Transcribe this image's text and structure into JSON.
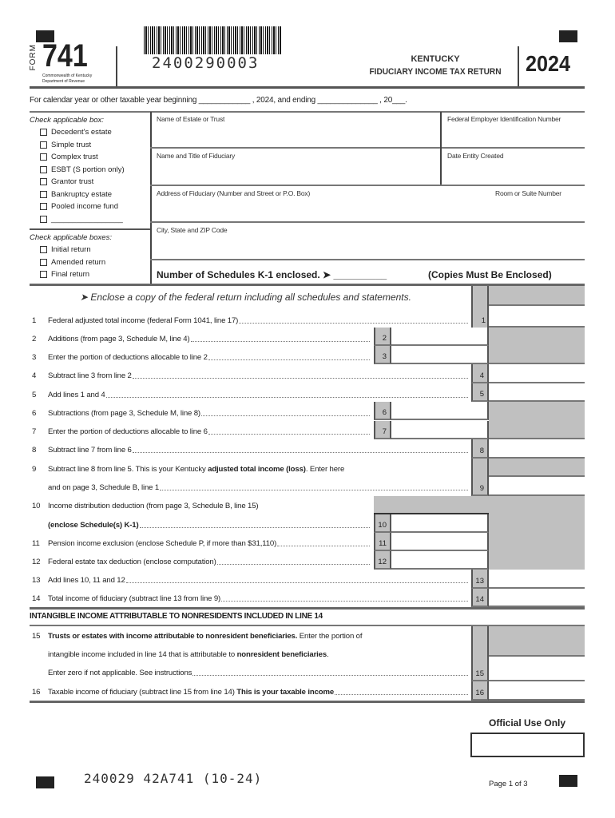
{
  "header": {
    "form_label": "FORM",
    "form_number": "741",
    "agency_line1": "Commonwealth of Kentucky",
    "agency_line2": "Department of Revenue",
    "barcode_number": "2400290003",
    "title_line1": "KENTUCKY",
    "title_line2": "FIDUCIARY INCOME TAX RETURN",
    "year": "2024"
  },
  "tax_year_line": "For calendar year or other taxable year beginning ____________ , 2024, and ending ______________ , 20___.",
  "entity_type": {
    "label": "Check applicable box:",
    "options": [
      "Decedent's estate",
      "Simple trust",
      "Complex trust",
      "ESBT (S portion only)",
      "Grantor trust",
      "Bankruptcy estate",
      "Pooled income fund",
      "_________________"
    ]
  },
  "return_type": {
    "label": "Check applicable boxes:",
    "options": [
      "Initial return",
      "Amended return",
      "Final return"
    ]
  },
  "fields": {
    "name": "Name of Estate or Trust",
    "fein": "Federal Employer Identification Number",
    "fiduciary": "Name and Title of Fiduciary",
    "date_created": "Date Entity Created",
    "address": "Address of Fiduciary (Number and Street or P.O. Box)",
    "suite": "Room or Suite Number",
    "city": "City, State and ZIP Code"
  },
  "k1": {
    "label": "Number of Schedules K-1 enclosed. ➤ __________",
    "note": "(Copies Must Be Enclosed)"
  },
  "enclose_note": "➤  Enclose a copy of the federal return including all schedules and statements.",
  "lines": {
    "l1": {
      "num": "1",
      "text": "Federal adjusted total income (federal Form 1041, line 17)"
    },
    "l2": {
      "num": "2",
      "text": "Additions (from page 3, Schedule M, line 4)"
    },
    "l3": {
      "num": "3",
      "text": "Enter the portion of deductions allocable to line 2"
    },
    "l4": {
      "num": "4",
      "text": "Subtract line 3 from line 2"
    },
    "l5": {
      "num": "5",
      "text": "Add lines 1 and 4"
    },
    "l6": {
      "num": "6",
      "text": "Subtractions (from page 3, Schedule M, line 8)"
    },
    "l7": {
      "num": "7",
      "text": "Enter the portion of deductions allocable to line 6"
    },
    "l8": {
      "num": "8",
      "text": "Subtract line 7 from line 6"
    },
    "l9": {
      "num": "9",
      "text_a": "Subtract line 8 from line 5. This is your Kentucky ",
      "bold_a": "adjusted total income (loss)",
      "text_b": ". Enter here",
      "text_c": "and on page 3, Schedule B, line 1"
    },
    "l10": {
      "num": "10",
      "text_a": "Income distribution deduction (from page 3, Schedule B, line 15)",
      "bold_b": "(enclose Schedule(s) K-1)"
    },
    "l11": {
      "num": "11",
      "text": "Pension income exclusion (enclose Schedule P, if more than $31,110)"
    },
    "l12": {
      "num": "12",
      "text": "Federal estate tax deduction (enclose computation)"
    },
    "l13": {
      "num": "13",
      "text": "Add lines 10, 11 and 12"
    },
    "l14": {
      "num": "14",
      "text": "Total income of fiduciary (subtract line 13 from line 9)"
    },
    "section_heading": "INTANGIBLE INCOME ATTRIBUTABLE TO NONRESIDENTS INCLUDED IN LINE 14",
    "l15": {
      "num": "15",
      "bold_a": "Trusts or estates with income attributable to nonresident beneficiaries.",
      "text_a": " Enter the portion of",
      "text_b": "intangible income included in line 14 that is attributable to ",
      "bold_b": "nonresident beneficiaries",
      "text_b2": ".",
      "text_c": "Enter zero if not applicable. See instructions"
    },
    "l16": {
      "num": "16",
      "text": "Taxable income of fiduciary (subtract line 15 from line 14) ",
      "bold": "This is your taxable income"
    }
  },
  "official_use": "Official Use Only",
  "footer": {
    "code": "240029 42A741 (10-24)",
    "page": "Page 1 of 3"
  },
  "colors": {
    "shade": "#c0c0c0",
    "ink": "#222222"
  }
}
